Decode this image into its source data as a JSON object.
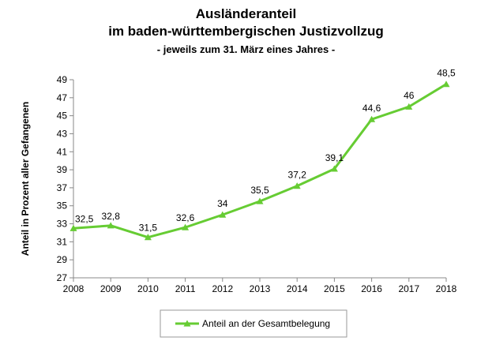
{
  "chart_data": {
    "type": "line",
    "title_line1": "Ausländeranteil",
    "title_line2": "im baden-württembergischen Justizvollzug",
    "subtitle": "- jeweils zum 31. März eines Jahres -",
    "ylabel": "Anteil in Prozent aller Gefangenen",
    "xlabel": "",
    "ylim": [
      27,
      49
    ],
    "yticks": [
      27,
      29,
      31,
      33,
      35,
      37,
      39,
      41,
      43,
      45,
      47,
      49
    ],
    "x": [
      "2008",
      "2009",
      "2010",
      "2011",
      "2012",
      "2013",
      "2014",
      "2015",
      "2016",
      "2017",
      "2018"
    ],
    "series": [
      {
        "name": "Anteil an der Gesamtbelegung",
        "values": [
          32.5,
          32.8,
          31.5,
          32.6,
          34,
          35.5,
          37.2,
          39.1,
          44.6,
          46,
          48.5
        ],
        "labels": [
          "32,5",
          "32,8",
          "31,5",
          "32,6",
          "34",
          "35,5",
          "37,2",
          "39,1",
          "44,6",
          "46",
          "48,5"
        ],
        "color": "#66cc33"
      }
    ],
    "grid": false,
    "legend": "bottom-center"
  }
}
